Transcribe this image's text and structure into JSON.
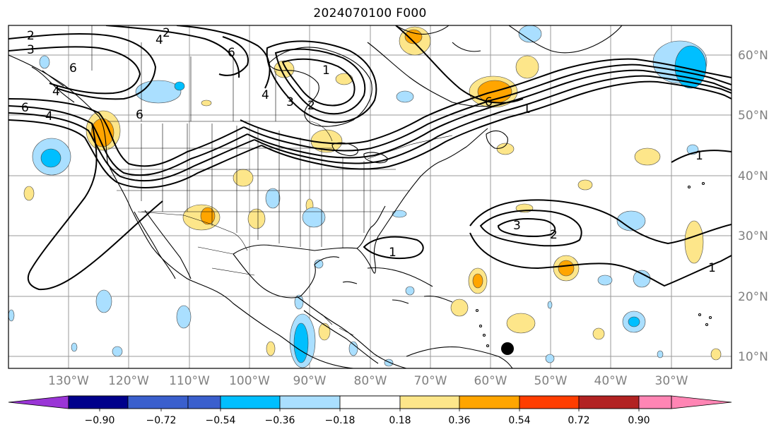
{
  "title": "2024070100 F000",
  "longitude_labels": [
    "130°W",
    "120°W",
    "110°W",
    "100°W",
    "90°W",
    "80°W",
    "70°W",
    "60°W",
    "50°W",
    "40°W",
    "30°W"
  ],
  "latitude_labels": [
    "60°N",
    "50°N",
    "40°N",
    "30°N",
    "20°N",
    "10°N"
  ],
  "colorbar": {
    "colors": [
      "#9a35d6",
      "#00008b",
      "#3a5fcd",
      "#00bfff",
      "#aadfff",
      "#ffffff",
      "#fde68a",
      "#ffa500",
      "#ff3d00",
      "#b22222",
      "#ff85b4"
    ],
    "tick_labels": [
      "−0.90",
      "−0.72",
      "−0.54",
      "−0.36",
      "−0.18",
      "0.18",
      "0.36",
      "0.54",
      "0.72",
      "0.90"
    ]
  },
  "contour_labels": [
    "2",
    "3",
    "4",
    "6",
    "4",
    "2",
    "6",
    "6",
    "4",
    "6",
    "4",
    "3",
    "2",
    "1",
    "6",
    "1",
    "1",
    "3",
    "2",
    "1",
    "1"
  ],
  "marker": {
    "type": "filled-circle",
    "color": "#000000"
  }
}
